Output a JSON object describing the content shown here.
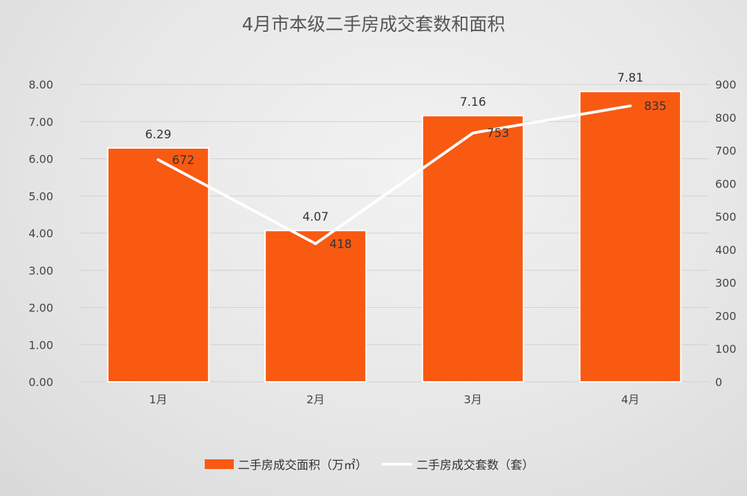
{
  "chart_data": {
    "type": "bar",
    "title": "4月市本级二手房成交套数和面积",
    "categories": [
      "1月",
      "2月",
      "3月",
      "4月"
    ],
    "series": [
      {
        "name": "二手房成交面积（万㎡）",
        "type": "bar",
        "axis": "left",
        "values": [
          6.29,
          4.07,
          7.16,
          7.81
        ],
        "labels": [
          "6.29",
          "4.07",
          "7.16",
          "7.81"
        ],
        "color": "#f85a12"
      },
      {
        "name": "二手房成交套数（套）",
        "type": "line",
        "axis": "right",
        "values": [
          672,
          418,
          753,
          835
        ],
        "labels": [
          "672",
          "418",
          "753",
          "835"
        ],
        "color": "#ffffff"
      }
    ],
    "y_left": {
      "ylim": [
        0,
        8
      ],
      "ticks": [
        0,
        1,
        2,
        3,
        4,
        5,
        6,
        7,
        8
      ],
      "tick_labels": [
        "0.00",
        "1.00",
        "2.00",
        "3.00",
        "4.00",
        "5.00",
        "6.00",
        "7.00",
        "8.00"
      ]
    },
    "y_right": {
      "ylim": [
        0,
        900
      ],
      "ticks": [
        0,
        100,
        200,
        300,
        400,
        500,
        600,
        700,
        800,
        900
      ],
      "tick_labels": [
        "0",
        "100",
        "200",
        "300",
        "400",
        "500",
        "600",
        "700",
        "800",
        "900"
      ]
    },
    "grid": true,
    "legend_position": "bottom",
    "colors": {
      "bar": "#f85a12",
      "line": "#ffffff",
      "grid": "#d0d0d0",
      "background": "#e7e7e7"
    }
  }
}
